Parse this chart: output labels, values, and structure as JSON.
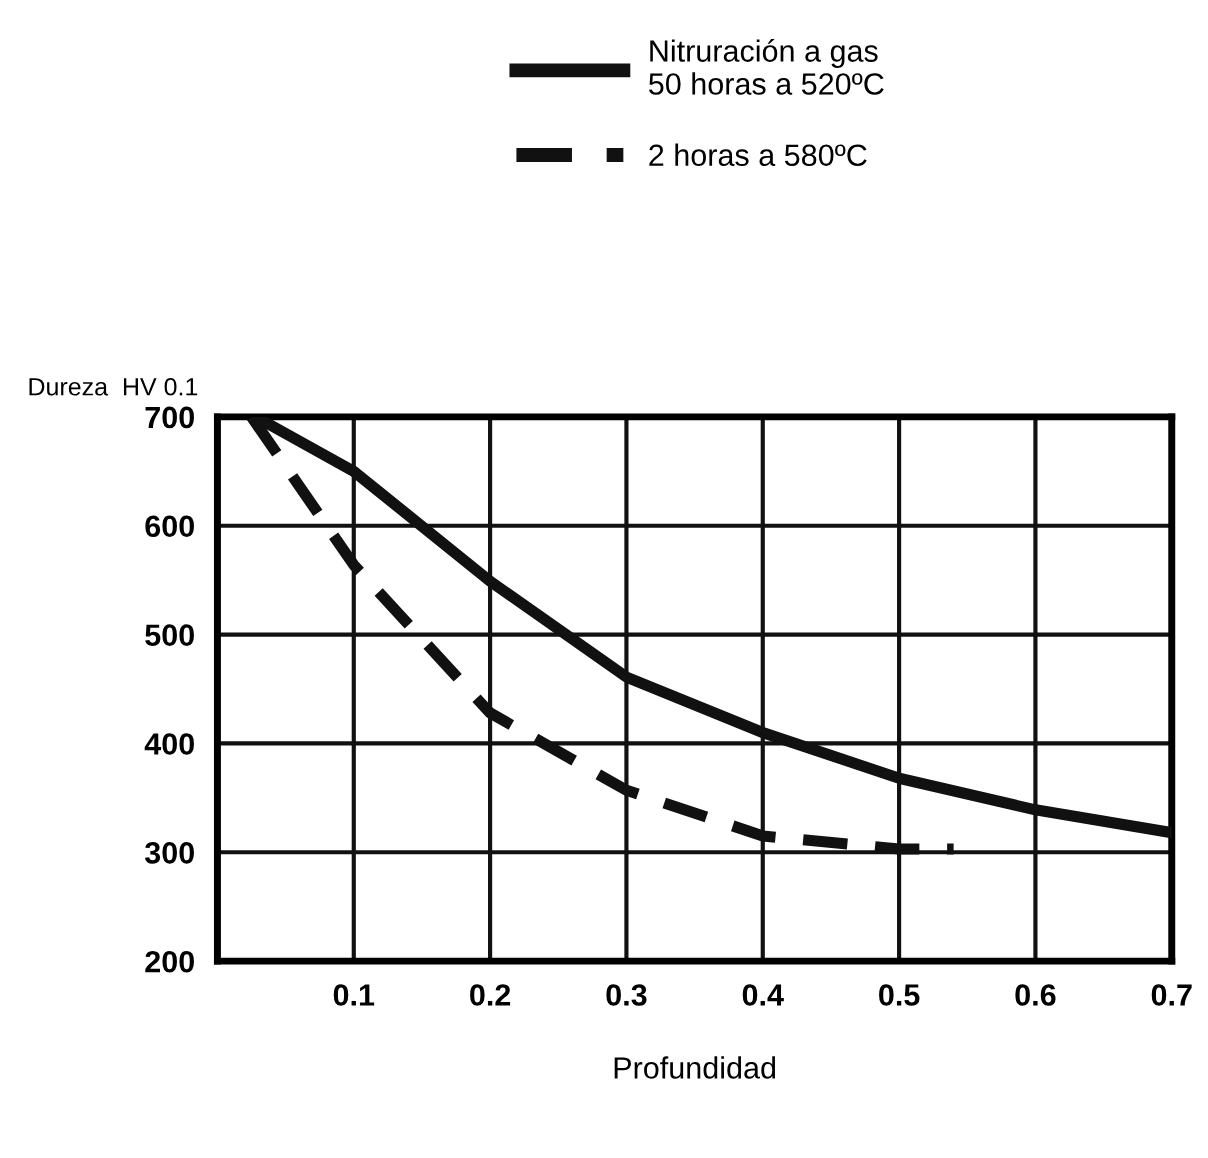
{
  "chart_data": {
    "type": "line",
    "ylabel": "Dureza  HV 0.1",
    "xlabel": "Profundidad",
    "xlim": [
      0,
      0.7
    ],
    "xticks": [
      {
        "value": 0,
        "label": null
      },
      0.1,
      0.2,
      0.3,
      0.4,
      0.5,
      0.6,
      0.7
    ],
    "ylim": [
      200,
      700
    ],
    "yticks": [
      200,
      300,
      400,
      500,
      600,
      700
    ],
    "grid": true,
    "legend": "top",
    "series": [
      {
        "name": "Nitruración a gas\n50 horas a 520ºC",
        "color": "#111111",
        "line_style": "solid",
        "x": [
          0.028,
          0.1,
          0.2,
          0.3,
          0.4,
          0.5,
          0.6,
          0.7
        ],
        "values": [
          700,
          650,
          549,
          461,
          410,
          368,
          339,
          318
        ]
      },
      {
        "name": "2 horas a 580ºC",
        "color": "#111111",
        "line_style": "dashed",
        "x": [
          0.025,
          0.1,
          0.2,
          0.3,
          0.4,
          0.5,
          0.54
        ],
        "values": [
          700,
          564,
          428,
          357,
          315,
          303,
          303
        ]
      }
    ]
  }
}
